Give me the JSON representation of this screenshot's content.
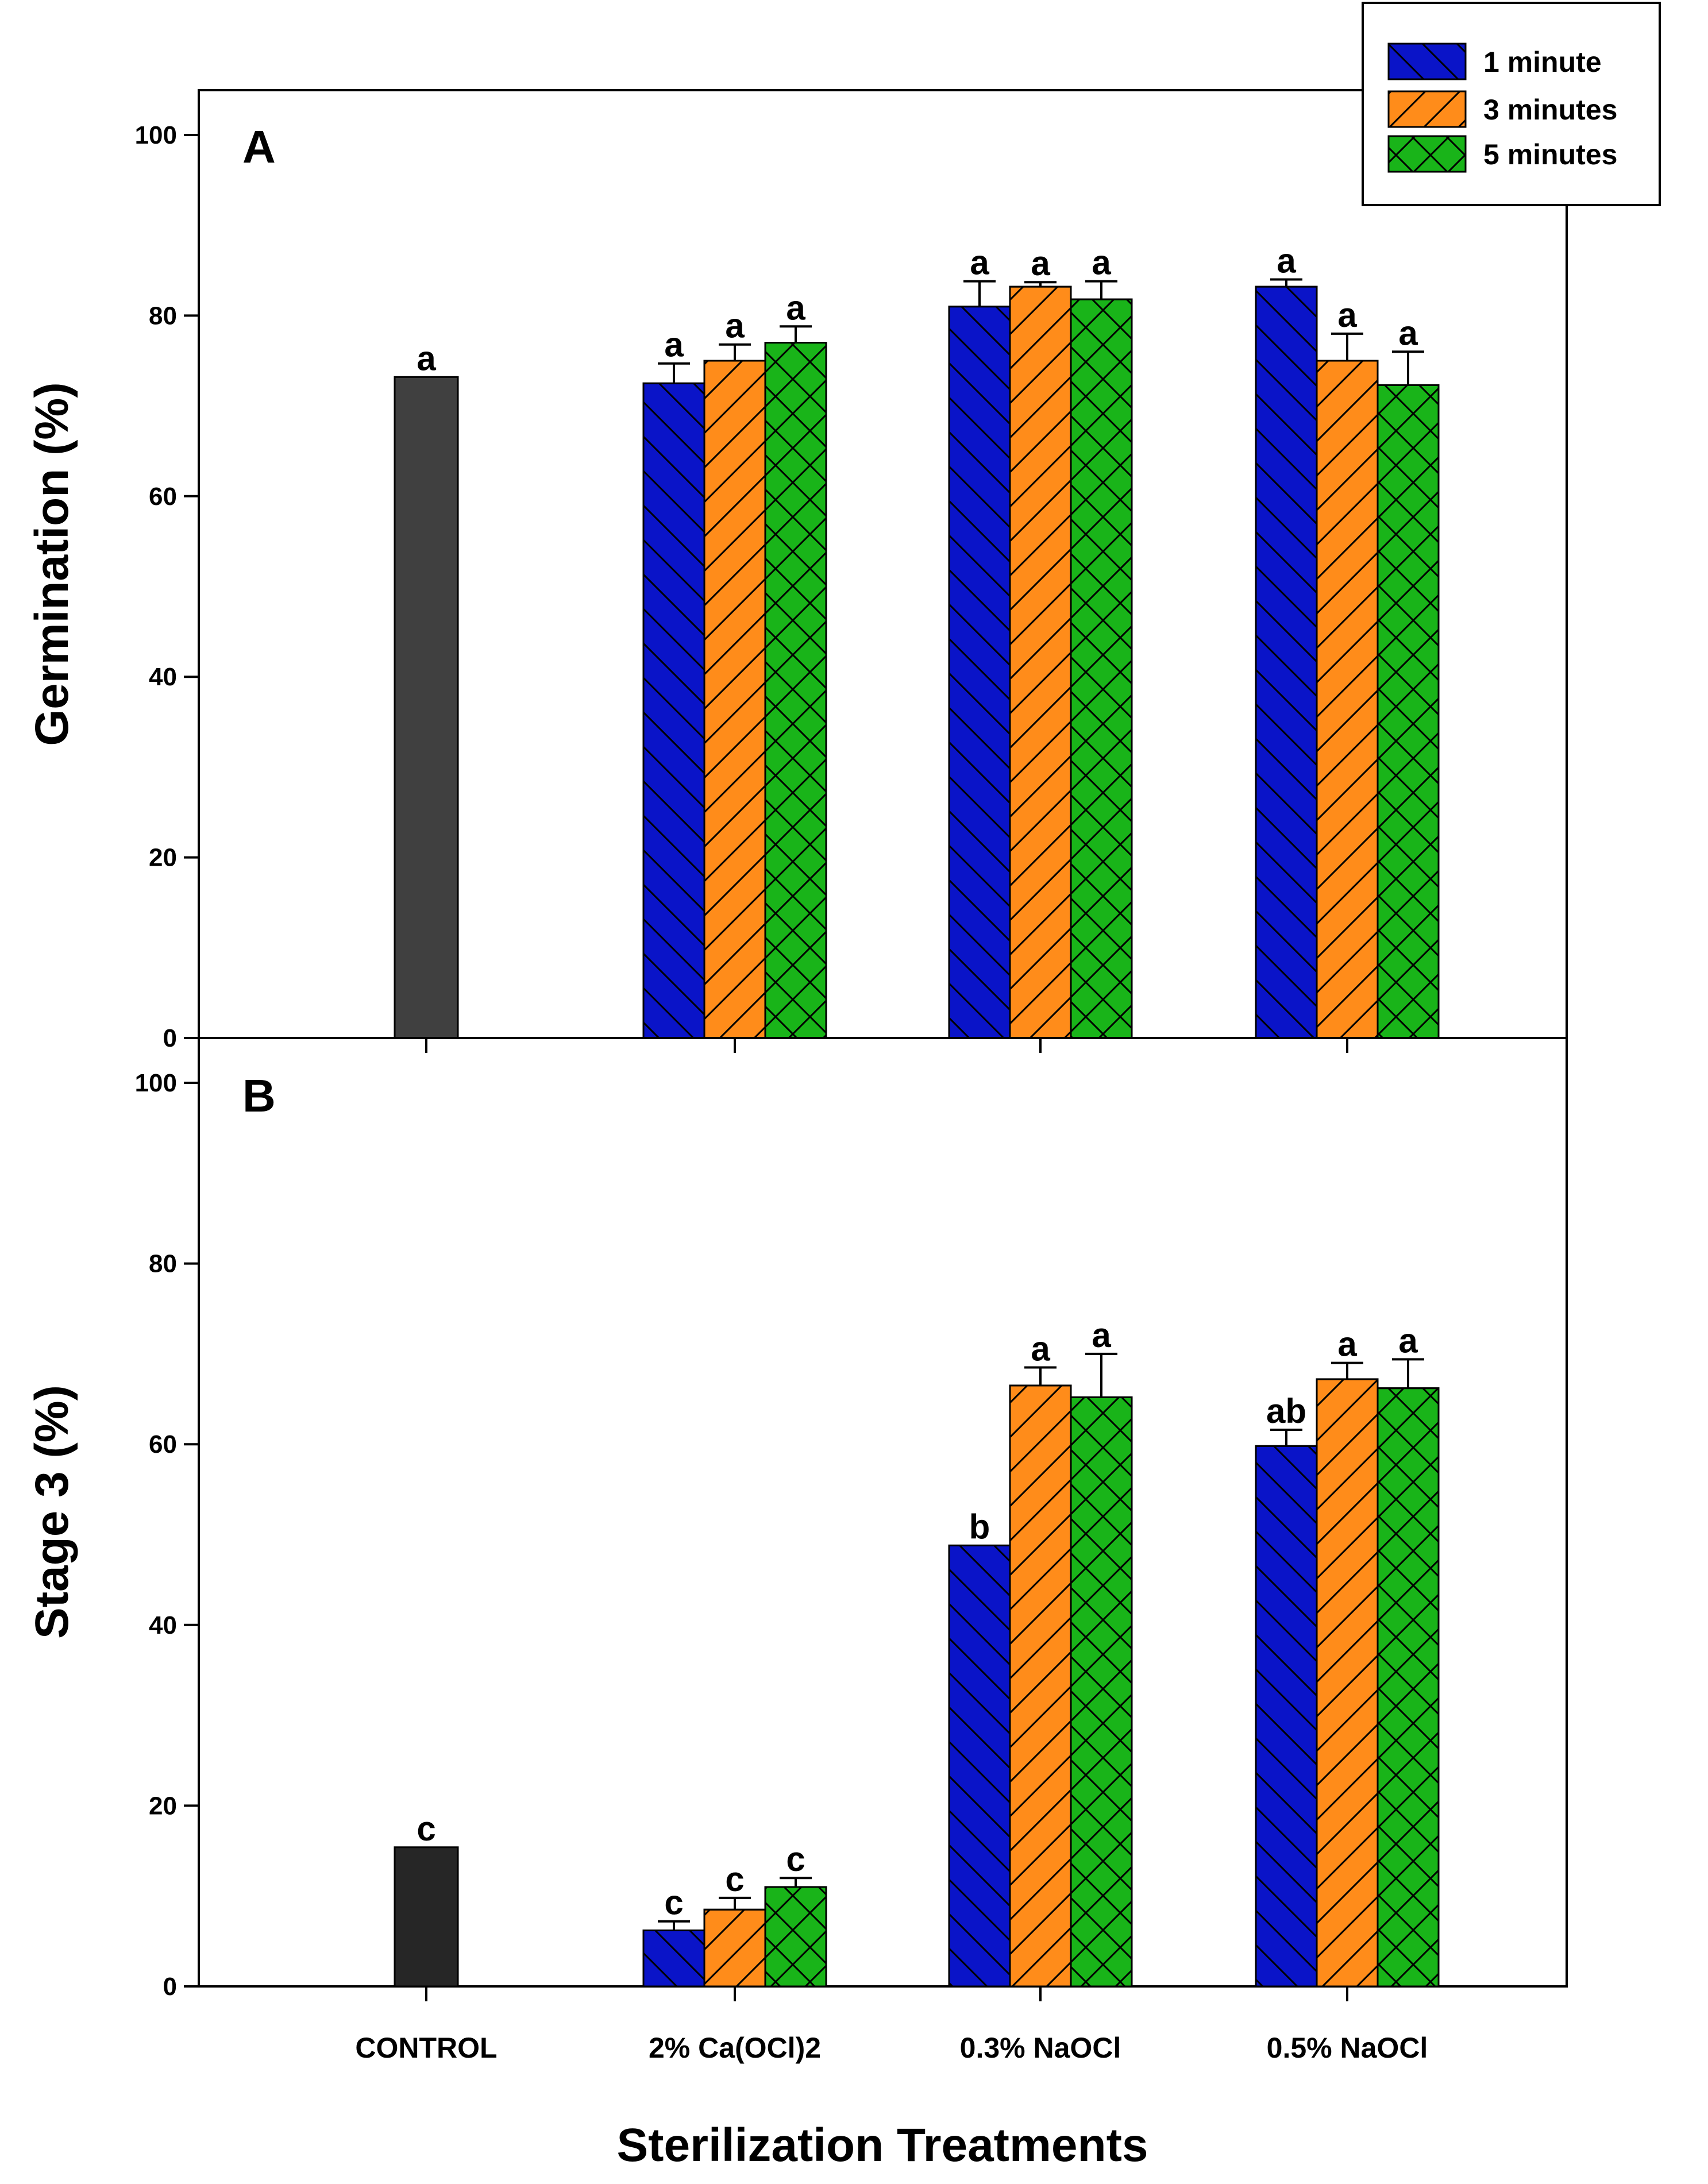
{
  "chart_data": {
    "type": "bar",
    "xlabel": "Sterilization Treatments",
    "categories": [
      "CONTROL",
      "2% Ca(OCl)2",
      "0.3% NaOCl",
      "0.5% NaOCl"
    ],
    "legend": {
      "placement": "top-right",
      "entries": [
        {
          "name": "1 minute",
          "color": "#0a14c8",
          "pattern": "back-diagonal"
        },
        {
          "name": "3 minutes",
          "color": "#ff8c1a",
          "pattern": "forward-diagonal"
        },
        {
          "name": "5 minutes",
          "color": "#19b419",
          "pattern": "crosshatch"
        }
      ]
    },
    "panels": [
      {
        "label": "A",
        "ylabel": "Germination (%)",
        "ylim": [
          0,
          100
        ],
        "yticks": [
          0,
          20,
          40,
          60,
          80,
          100
        ],
        "control": {
          "value": 73.2,
          "error": 0,
          "letter": "a",
          "color": "#404040"
        },
        "series": [
          {
            "name": "1 minute",
            "values": [
              72.5,
              81.0,
              83.2
            ],
            "errors": [
              2.2,
              2.8,
              0.8
            ],
            "letters": [
              "a",
              "a",
              "a"
            ]
          },
          {
            "name": "3 minutes",
            "values": [
              75.0,
              83.2,
              75.0
            ],
            "errors": [
              1.8,
              0.5,
              3.0
            ],
            "letters": [
              "a",
              "a",
              "a"
            ]
          },
          {
            "name": "5 minutes",
            "values": [
              77.0,
              81.8,
              72.3
            ],
            "errors": [
              1.8,
              2.0,
              3.7
            ],
            "letters": [
              "a",
              "a",
              "a"
            ]
          }
        ]
      },
      {
        "label": "B",
        "ylabel": "Stage 3 (%)",
        "ylim": [
          0,
          100
        ],
        "yticks": [
          0,
          20,
          40,
          60,
          80,
          100
        ],
        "control": {
          "value": 15.4,
          "error": 0,
          "letter": "c",
          "color": "#262626"
        },
        "series": [
          {
            "name": "1 minute",
            "values": [
              6.2,
              48.8,
              59.8
            ],
            "errors": [
              1.0,
              0,
              1.8
            ],
            "letters": [
              "c",
              "b",
              "ab"
            ]
          },
          {
            "name": "3 minutes",
            "values": [
              8.5,
              66.5,
              67.2
            ],
            "errors": [
              1.3,
              2.0,
              1.8
            ],
            "letters": [
              "c",
              "a",
              "a"
            ]
          },
          {
            "name": "5 minutes",
            "values": [
              11.0,
              65.2,
              66.2
            ],
            "errors": [
              1.0,
              4.8,
              3.2
            ],
            "letters": [
              "c",
              "a",
              "a"
            ]
          }
        ]
      }
    ]
  }
}
